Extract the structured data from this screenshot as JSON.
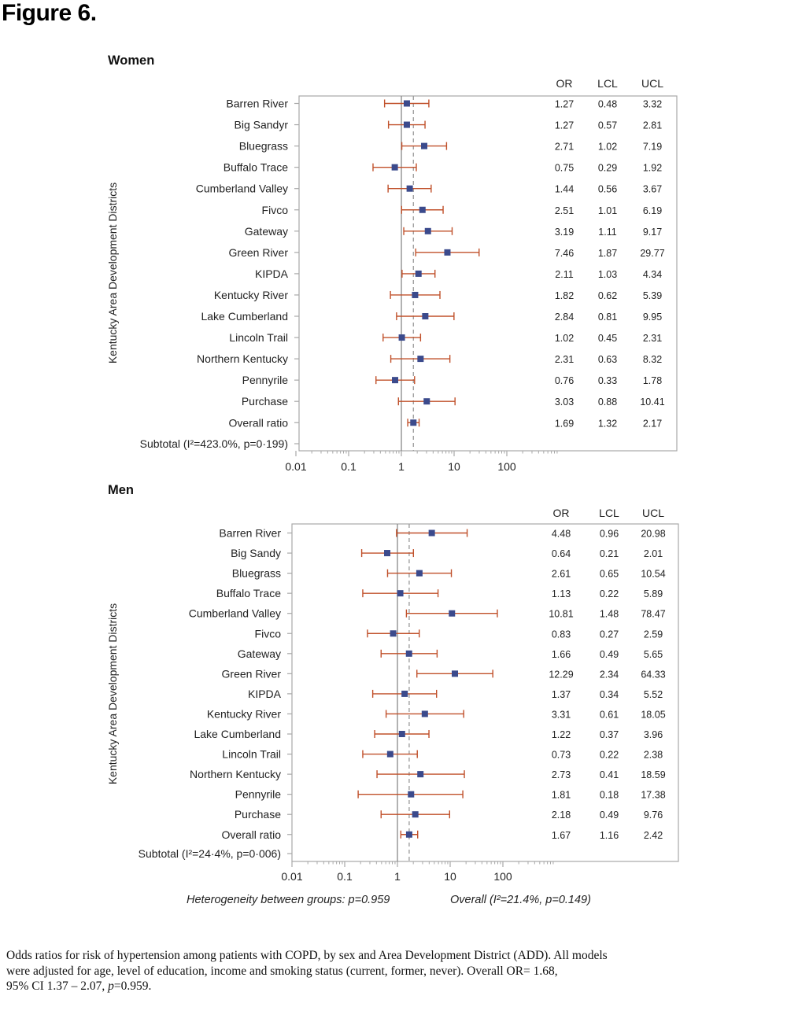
{
  "figure_title": "Figure 6.",
  "caption": {
    "line1": "Odds ratios for risk of hypertension among patients with COPD, by sex and Area Development District (ADD). All models",
    "line2": "were adjusted for age, level of education, income and smoking status (current, former, never). Overall OR= 1.68,",
    "line3_prefix": "95% CI 1.37 – 2.07, ",
    "line3_p": "p",
    "line3_suffix": "=0.959."
  },
  "footer": {
    "heterogeneity": "Heterogeneity between groups: p=0.959",
    "overall": "Overall (I²=21.4%, p=0.149)"
  },
  "colors": {
    "marker": "#3b4a8c",
    "ci": "#c0502a",
    "frame": "#a8a8a8",
    "reference_line": "#888888",
    "overall_line": "#999999"
  },
  "chart_data": [
    {
      "type": "forest",
      "title": "Women",
      "ylabel": "Kentucky Area Development Districts",
      "x_scale": "log",
      "xlim": [
        0.01,
        1000
      ],
      "x_ticks": [
        "0.01",
        "0.1",
        "1",
        "10",
        "100"
      ],
      "column_headers": [
        "OR",
        "LCL",
        "UCL"
      ],
      "reference_value": 1,
      "overall_value": 1.69,
      "subtotal_label": "Subtotal (I²=423.0%, p=0·199)",
      "rows": [
        {
          "label": "Barren River",
          "or": "1.27",
          "lcl": "0.48",
          "ucl": "3.32"
        },
        {
          "label": "Big Sandyr",
          "or": "1.27",
          "lcl": "0.57",
          "ucl": "2.81"
        },
        {
          "label": "Bluegrass",
          "or": "2.71",
          "lcl": "1.02",
          "ucl": "7.19"
        },
        {
          "label": "Buffalo Trace",
          "or": "0.75",
          "lcl": "0.29",
          "ucl": "1.92"
        },
        {
          "label": "Cumberland Valley",
          "or": "1.44",
          "lcl": "0.56",
          "ucl": "3.67"
        },
        {
          "label": "Fivco",
          "or": "2.51",
          "lcl": "1.01",
          "ucl": "6.19"
        },
        {
          "label": "Gateway",
          "or": "3.19",
          "lcl": "1.11",
          "ucl": "9.17"
        },
        {
          "label": "Green River",
          "or": "7.46",
          "lcl": "1.87",
          "ucl": "29.77"
        },
        {
          "label": "KIPDA",
          "or": "2.11",
          "lcl": "1.03",
          "ucl": "4.34"
        },
        {
          "label": "Kentucky River",
          "or": "1.82",
          "lcl": "0.62",
          "ucl": "5.39"
        },
        {
          "label": "Lake Cumberland",
          "or": "2.84",
          "lcl": "0.81",
          "ucl": "9.95"
        },
        {
          "label": "Lincoln Trail",
          "or": "1.02",
          "lcl": "0.45",
          "ucl": "2.31"
        },
        {
          "label": "Northern Kentucky",
          "or": "2.31",
          "lcl": "0.63",
          "ucl": "8.32"
        },
        {
          "label": "Pennyrile",
          "or": "0.76",
          "lcl": "0.33",
          "ucl": "1.78"
        },
        {
          "label": "Purchase",
          "or": "3.03",
          "lcl": "0.88",
          "ucl": "10.41"
        },
        {
          "label": "Overall ratio",
          "or": "1.69",
          "lcl": "1.32",
          "ucl": "2.17"
        }
      ]
    },
    {
      "type": "forest",
      "title": "Men",
      "ylabel": "Kentucky Area Development Districts",
      "x_scale": "log",
      "xlim": [
        0.01,
        1000
      ],
      "x_ticks": [
        "0.01",
        "0.1",
        "1",
        "10",
        "100"
      ],
      "column_headers": [
        "OR",
        "LCL",
        "UCL"
      ],
      "reference_value": 1,
      "overall_value": 1.67,
      "subtotal_label": "Subtotal (I²=24·4%, p=0·006)",
      "rows": [
        {
          "label": "Barren River",
          "or": "4.48",
          "lcl": "0.96",
          "ucl": "20.98"
        },
        {
          "label": "Big Sandy",
          "or": "0.64",
          "lcl": "0.21",
          "ucl": "2.01"
        },
        {
          "label": "Bluegrass",
          "or": "2.61",
          "lcl": "0.65",
          "ucl": "10.54"
        },
        {
          "label": "Buffalo Trace",
          "or": "1.13",
          "lcl": "0.22",
          "ucl": "5.89"
        },
        {
          "label": "Cumberland Valley",
          "or": "10.81",
          "lcl": "1.48",
          "ucl": "78.47"
        },
        {
          "label": "Fivco",
          "or": "0.83",
          "lcl": "0.27",
          "ucl": "2.59"
        },
        {
          "label": "Gateway",
          "or": "1.66",
          "lcl": "0.49",
          "ucl": "5.65"
        },
        {
          "label": "Green River",
          "or": "12.29",
          "lcl": "2.34",
          "ucl": "64.33"
        },
        {
          "label": "KIPDA",
          "or": "1.37",
          "lcl": "0.34",
          "ucl": "5.52"
        },
        {
          "label": "Kentucky River",
          "or": "3.31",
          "lcl": "0.61",
          "ucl": "18.05"
        },
        {
          "label": "Lake Cumberland",
          "or": "1.22",
          "lcl": "0.37",
          "ucl": "3.96"
        },
        {
          "label": "Lincoln Trail",
          "or": "0.73",
          "lcl": "0.22",
          "ucl": "2.38"
        },
        {
          "label": "Northern Kentucky",
          "or": "2.73",
          "lcl": "0.41",
          "ucl": "18.59"
        },
        {
          "label": "Pennyrile",
          "or": "1.81",
          "lcl": "0.18",
          "ucl": "17.38"
        },
        {
          "label": "Purchase",
          "or": "2.18",
          "lcl": "0.49",
          "ucl": "9.76"
        },
        {
          "label": "Overall ratio",
          "or": "1.67",
          "lcl": "1.16",
          "ucl": "2.42"
        }
      ]
    }
  ]
}
